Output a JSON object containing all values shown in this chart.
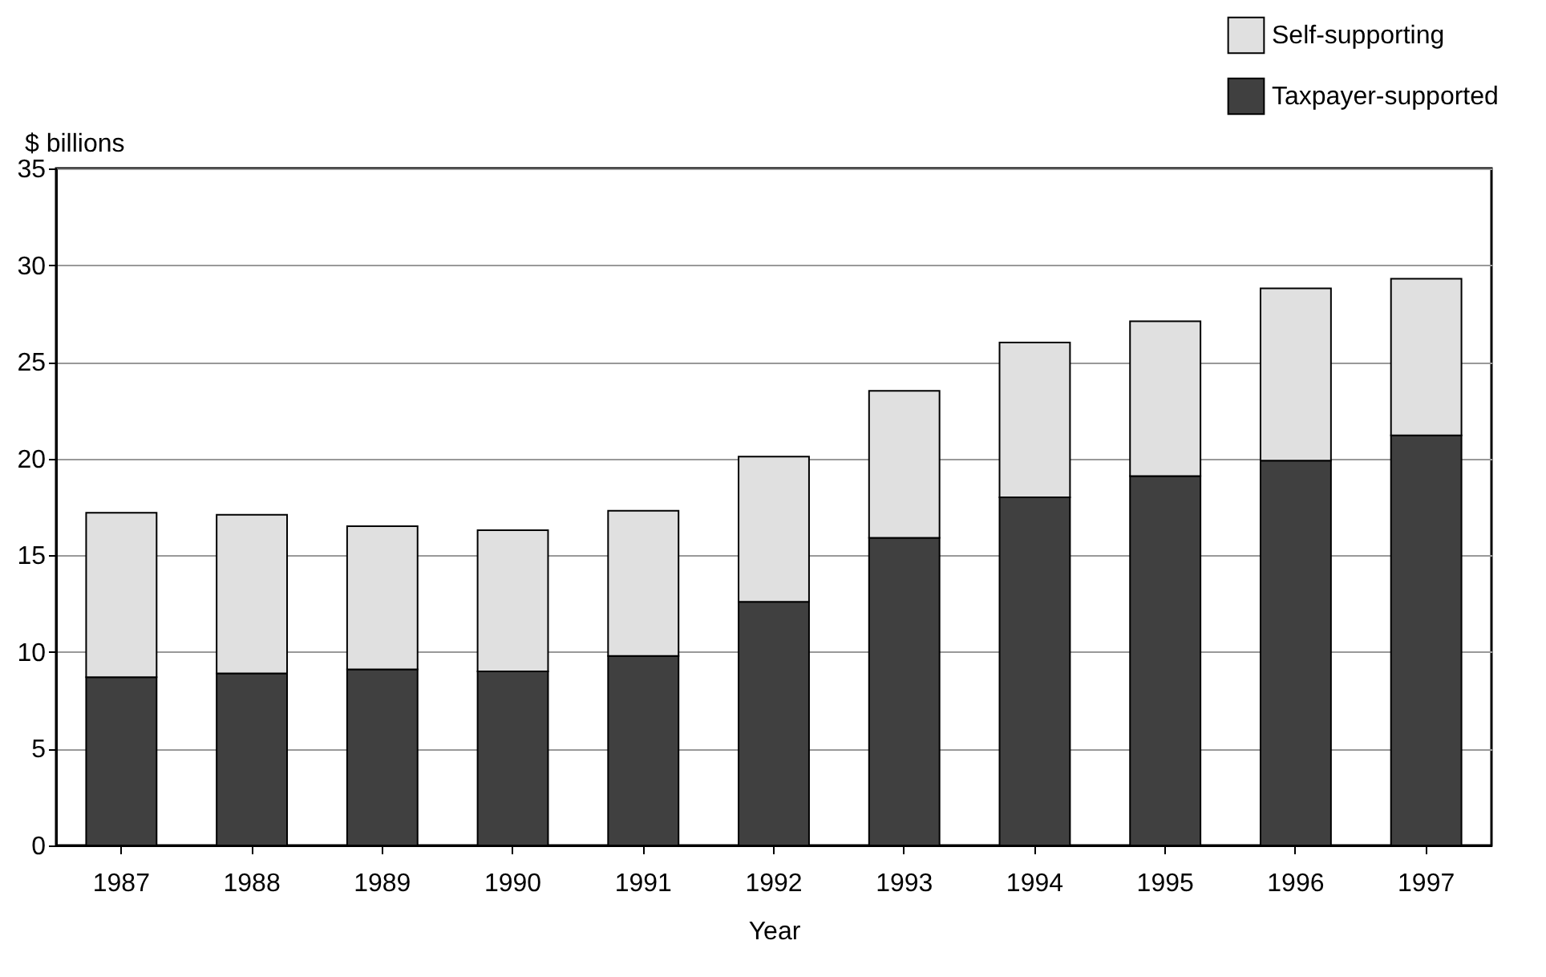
{
  "chart_data": {
    "type": "bar",
    "stacked": true,
    "ylabel": "$ billions",
    "xlabel": "Year",
    "categories": [
      "1987",
      "1988",
      "1989",
      "1990",
      "1991",
      "1992",
      "1993",
      "1994",
      "1995",
      "1996",
      "1997"
    ],
    "series": [
      {
        "name": "Taxpayer-supported",
        "color": "#404040",
        "values": [
          8.7,
          8.9,
          9.1,
          9.0,
          9.8,
          12.6,
          15.9,
          18.0,
          19.1,
          19.9,
          21.2
        ]
      },
      {
        "name": "Self-supporting",
        "color": "#e0e0e0",
        "values": [
          8.5,
          8.2,
          7.4,
          7.3,
          7.5,
          7.5,
          7.6,
          8.0,
          8.0,
          8.9,
          8.1
        ]
      }
    ],
    "ylim": [
      0,
      35
    ],
    "yticks": [
      0,
      5,
      10,
      15,
      20,
      25,
      30,
      35
    ],
    "grid": "y",
    "legend": "top right"
  }
}
